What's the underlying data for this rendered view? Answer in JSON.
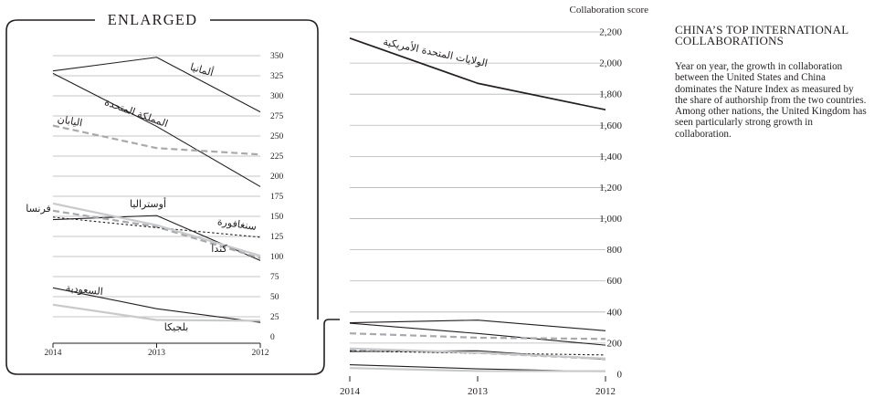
{
  "sidebar": {
    "title": "CHINA’S TOP INTERNATIONAL COLLABORATIONS",
    "body": "Year on year, the growth in collaboration between the United States and China dominates the Nature Index as measured by the share of authorship from the two countries. Among other nations, the United Kingdom has seen particularly strong growth in collaboration."
  },
  "enlarged_label": "ENLARGED",
  "chart_data": [
    {
      "type": "line",
      "title": "",
      "ylabel": "Collaboration score",
      "xlabel": "",
      "categories": [
        "2014",
        "2013",
        "2012"
      ],
      "ylim": [
        0,
        2200
      ],
      "yticks": [
        0,
        200,
        400,
        600,
        800,
        1000,
        1200,
        1400,
        1600,
        1800,
        2000,
        2200
      ],
      "ytick_labels": [
        "0",
        "200",
        "400",
        "600",
        "800",
        "1,000",
        "1,200",
        "1,400",
        "1,600",
        "1,800",
        "2,000",
        "2,200"
      ],
      "grid": true,
      "series": [
        {
          "name": "الولايات المتحدة الأمريكية",
          "values": [
            2160,
            1870,
            1700
          ],
          "color": "#231f20",
          "style": "solid",
          "width": 1.7
        },
        {
          "name": "ألمانيا",
          "values": [
            331,
            348,
            280
          ],
          "color": "#231f20",
          "style": "solid",
          "width": 1.1
        },
        {
          "name": "المملكة المتحدة",
          "values": [
            328,
            262,
            187
          ],
          "color": "#231f20",
          "style": "solid",
          "width": 1.1
        },
        {
          "name": "اليابان",
          "values": [
            263,
            235,
            227
          ],
          "color": "#a7a9ac",
          "style": "dashed",
          "width": 2.2
        },
        {
          "name": "أوسترالي",
          "values": [
            146,
            151,
            95
          ],
          "color": "#231f20",
          "style": "solid",
          "width": 1.1
        },
        {
          "name": "فرنسا",
          "values": [
            157,
            137,
            98
          ],
          "color": "#a7a9ac",
          "style": "dashed",
          "width": 2.2
        },
        {
          "name": "سنغافورة",
          "values": [
            149,
            136,
            124
          ],
          "color": "#231f20",
          "style": "dotted",
          "width": 1.1
        },
        {
          "name": "كندا",
          "values": [
            166,
            139,
            101
          ],
          "color": "#c8c9cb",
          "style": "solid",
          "width": 2.2
        },
        {
          "name": "السعودية",
          "values": [
            61,
            35,
            18
          ],
          "color": "#231f20",
          "style": "solid",
          "width": 1.1
        },
        {
          "name": "بلجيكا",
          "values": [
            40,
            21,
            20
          ],
          "color": "#c8c9cb",
          "style": "solid",
          "width": 2.2
        }
      ],
      "annotations": [
        {
          "text": "الولايات المتحدة الأمريكية",
          "series": "الولايات المتحدة الأمريكية"
        }
      ]
    },
    {
      "type": "line",
      "title": "ENLARGED",
      "xlabel": "",
      "ylabel": "",
      "categories": [
        "2014",
        "2013",
        "2012"
      ],
      "ylim": [
        0,
        350
      ],
      "yticks": [
        0,
        25,
        50,
        75,
        100,
        125,
        150,
        175,
        200,
        225,
        250,
        275,
        300,
        325,
        350
      ],
      "ytick_labels": [
        "0",
        "25",
        "50",
        "75",
        "100",
        "125",
        "150",
        "175",
        "200",
        "225",
        "250",
        "275",
        "300",
        "325",
        "350"
      ],
      "grid": true,
      "annotations": [
        {
          "text": "ألمانيا"
        },
        {
          "text": "المملكة المتحدة"
        },
        {
          "text": "اليابان"
        },
        {
          "text": "أوستراليا"
        },
        {
          "text": "فرنسا"
        },
        {
          "text": "سنغافورة"
        },
        {
          "text": "كندا"
        },
        {
          "text": "السعودية"
        },
        {
          "text": "بلجيكا"
        }
      ]
    }
  ]
}
